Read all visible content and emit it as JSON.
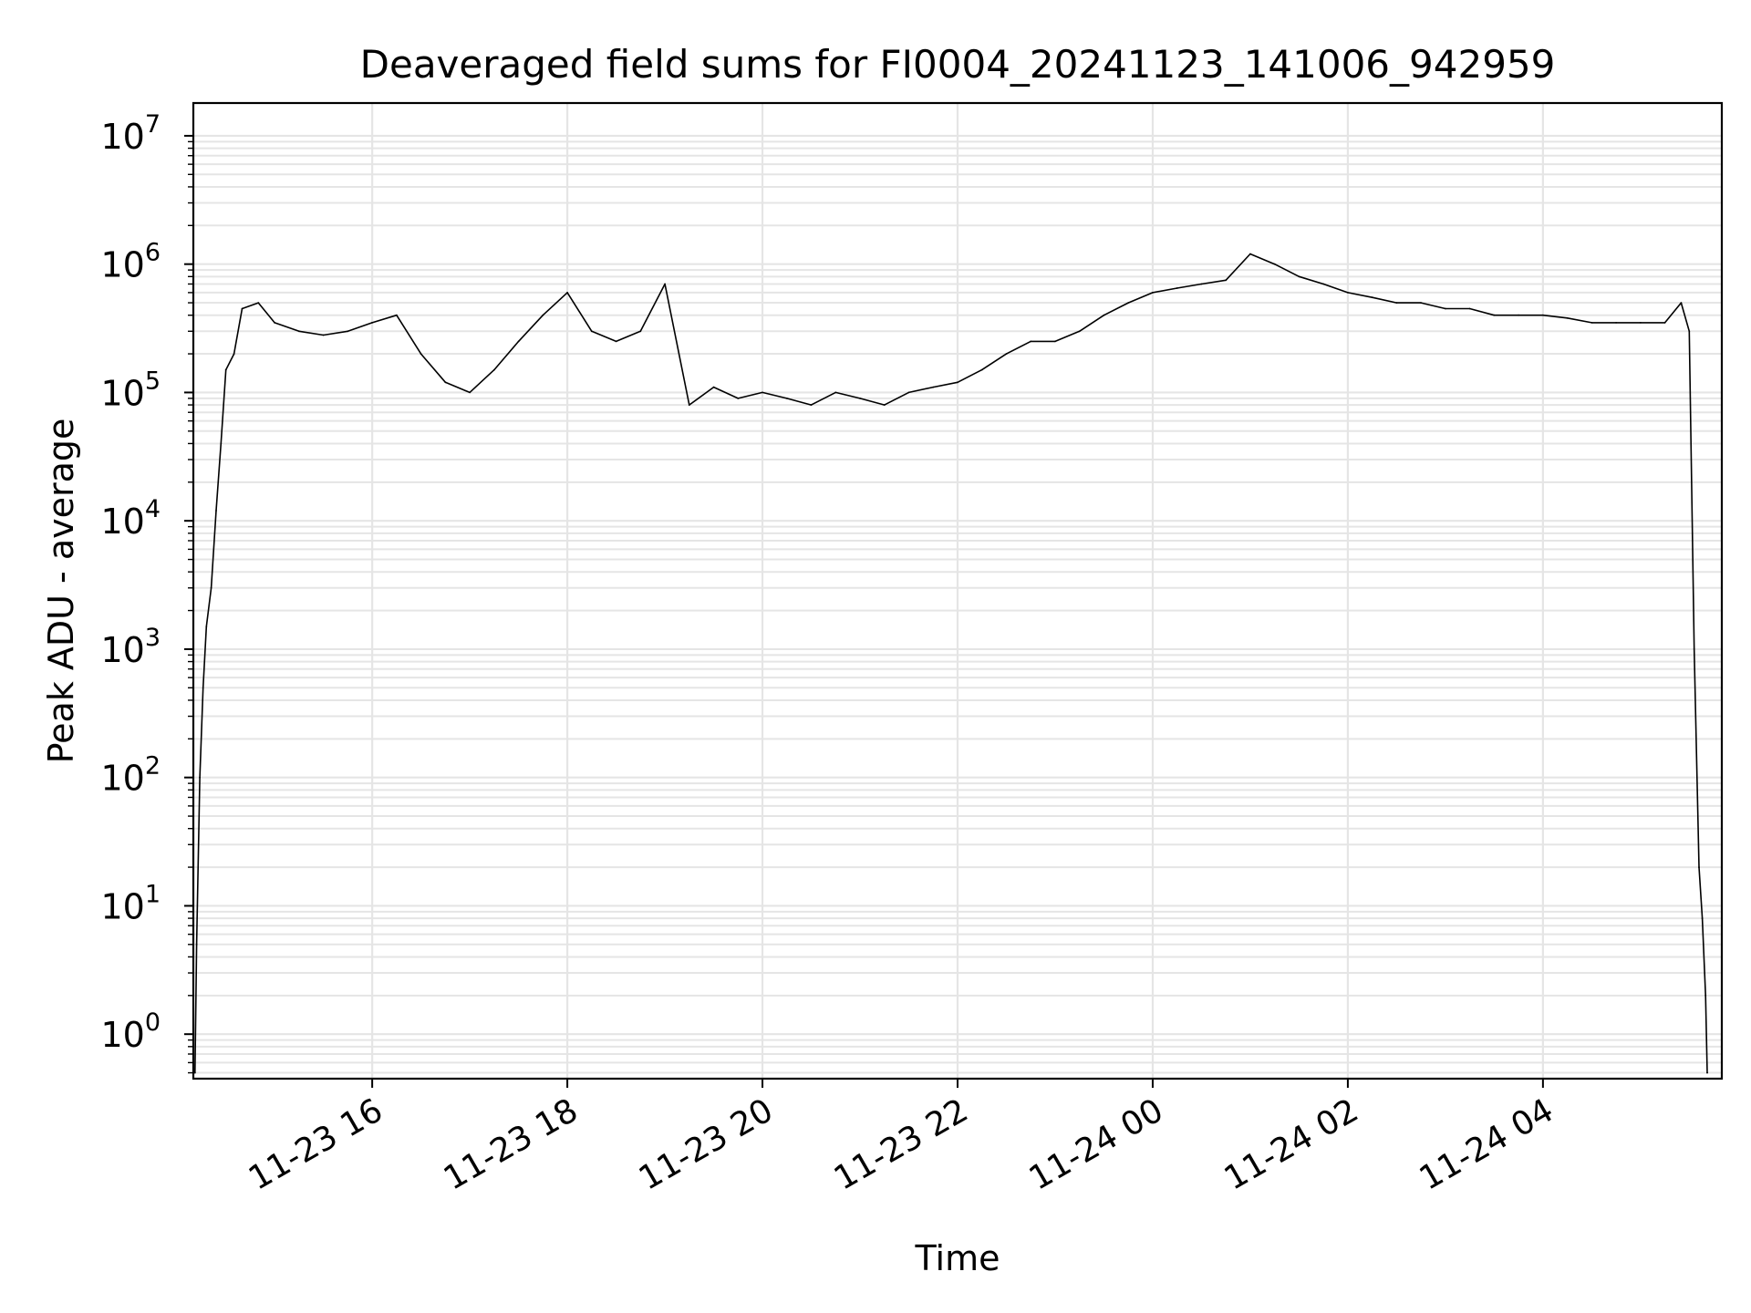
{
  "chart_data": {
    "type": "line",
    "title": "Deaveraged field sums for FI0004_20241123_141006_942959",
    "xlabel": "Time",
    "ylabel": "Peak ADU - average",
    "y_scale": "log",
    "ylim": [
      0.45,
      18000000
    ],
    "xlim": [
      "2024-11-23 14:10",
      "2024-11-24 05:50"
    ],
    "grid": true,
    "legend": "none",
    "line_color": "#000000",
    "grid_color": "#e5e5e5",
    "x_ticks": [
      {
        "t": "2024-11-23 16:00",
        "label": "11-23 16"
      },
      {
        "t": "2024-11-23 18:00",
        "label": "11-23 18"
      },
      {
        "t": "2024-11-23 20:00",
        "label": "11-23 20"
      },
      {
        "t": "2024-11-23 22:00",
        "label": "11-23 22"
      },
      {
        "t": "2024-11-24 00:00",
        "label": "11-24 00"
      },
      {
        "t": "2024-11-24 02:00",
        "label": "11-24 02"
      },
      {
        "t": "2024-11-24 04:00",
        "label": "11-24 04"
      }
    ],
    "y_ticks": [
      {
        "value": 1,
        "base": "10",
        "exp": "0"
      },
      {
        "value": 10,
        "base": "10",
        "exp": "1"
      },
      {
        "value": 100,
        "base": "10",
        "exp": "2"
      },
      {
        "value": 1000,
        "base": "10",
        "exp": "3"
      },
      {
        "value": 10000,
        "base": "10",
        "exp": "4"
      },
      {
        "value": 100000,
        "base": "10",
        "exp": "5"
      },
      {
        "value": 1000000,
        "base": "10",
        "exp": "6"
      },
      {
        "value": 10000000,
        "base": "10",
        "exp": "7"
      }
    ],
    "series": [
      {
        "values_note": "",
        "x": [
          "2024-11-23 14:11",
          "2024-11-23 14:12",
          "2024-11-23 14:14",
          "2024-11-23 14:16",
          "2024-11-23 14:18",
          "2024-11-23 14:21",
          "2024-11-23 14:24",
          "2024-11-23 14:27",
          "2024-11-23 14:30",
          "2024-11-23 14:35",
          "2024-11-23 14:40",
          "2024-11-23 14:50",
          "2024-11-23 15:00",
          "2024-11-23 15:15",
          "2024-11-23 15:30",
          "2024-11-23 15:45",
          "2024-11-23 16:00",
          "2024-11-23 16:15",
          "2024-11-23 16:30",
          "2024-11-23 16:45",
          "2024-11-23 17:00",
          "2024-11-23 17:15",
          "2024-11-23 17:30",
          "2024-11-23 17:45",
          "2024-11-23 18:00",
          "2024-11-23 18:15",
          "2024-11-23 18:30",
          "2024-11-23 18:45",
          "2024-11-23 19:00",
          "2024-11-23 19:15",
          "2024-11-23 19:30",
          "2024-11-23 19:45",
          "2024-11-23 20:00",
          "2024-11-23 20:15",
          "2024-11-23 20:30",
          "2024-11-23 20:45",
          "2024-11-23 21:00",
          "2024-11-23 21:15",
          "2024-11-23 21:30",
          "2024-11-23 21:45",
          "2024-11-23 22:00",
          "2024-11-23 22:15",
          "2024-11-23 22:30",
          "2024-11-23 22:45",
          "2024-11-23 23:00",
          "2024-11-23 23:15",
          "2024-11-23 23:30",
          "2024-11-23 23:45",
          "2024-11-24 00:00",
          "2024-11-24 00:15",
          "2024-11-24 00:30",
          "2024-11-24 00:45",
          "2024-11-24 01:00",
          "2024-11-24 01:15",
          "2024-11-24 01:30",
          "2024-11-24 01:45",
          "2024-11-24 02:00",
          "2024-11-24 02:15",
          "2024-11-24 02:30",
          "2024-11-24 02:45",
          "2024-11-24 03:00",
          "2024-11-24 03:15",
          "2024-11-24 03:30",
          "2024-11-24 03:45",
          "2024-11-24 04:00",
          "2024-11-24 04:15",
          "2024-11-24 04:30",
          "2024-11-24 04:45",
          "2024-11-24 05:00",
          "2024-11-24 05:15",
          "2024-11-24 05:25",
          "2024-11-24 05:30",
          "2024-11-24 05:33",
          "2024-11-24 05:36",
          "2024-11-24 05:38",
          "2024-11-24 05:40",
          "2024-11-24 05:41"
        ],
        "y": [
          0.5,
          5,
          100,
          500,
          1500,
          3000,
          12000,
          40000,
          150000,
          200000,
          450000,
          500000,
          350000,
          300000,
          280000,
          300000,
          350000,
          400000,
          200000,
          120000,
          100000,
          150000,
          250000,
          400000,
          600000,
          300000,
          250000,
          300000,
          700000,
          80000,
          110000,
          90000,
          100000,
          90000,
          80000,
          100000,
          90000,
          80000,
          100000,
          110000,
          120000,
          150000,
          200000,
          250000,
          250000,
          300000,
          400000,
          500000,
          600000,
          650000,
          700000,
          750000,
          1200000,
          1000000,
          800000,
          700000,
          600000,
          550000,
          500000,
          500000,
          450000,
          450000,
          400000,
          400000,
          400000,
          380000,
          350000,
          350000,
          350000,
          350000,
          500000,
          300000,
          1000,
          20,
          8,
          2,
          0.5
        ]
      }
    ]
  }
}
